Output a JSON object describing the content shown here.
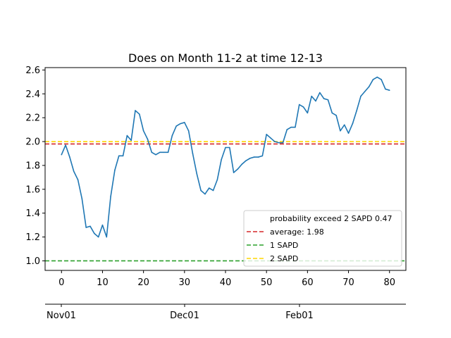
{
  "chart_data": {
    "type": "line",
    "title": "Does on Month 11-2 at time 12-13",
    "xlabel": "",
    "ylabel": "",
    "xlim": [
      -4,
      84
    ],
    "ylim": [
      0.92,
      2.62
    ],
    "x_ticks": [
      0,
      10,
      20,
      30,
      40,
      50,
      60,
      70,
      80
    ],
    "y_ticks": [
      1.0,
      1.2,
      1.4,
      1.6,
      1.8,
      2.0,
      2.2,
      2.4,
      2.6
    ],
    "y_tick_labels": [
      "1.0",
      "1.2",
      "1.4",
      "1.6",
      "1.8",
      "2.0",
      "2.2",
      "2.4",
      "2.6"
    ],
    "grid": false,
    "legend_position": "lower-right",
    "series": [
      {
        "name": "",
        "color": "#1f77b4",
        "x": [
          0,
          1,
          2,
          3,
          4,
          5,
          6,
          7,
          8,
          9,
          10,
          11,
          12,
          13,
          14,
          15,
          16,
          17,
          18,
          19,
          20,
          21,
          22,
          23,
          24,
          25,
          26,
          27,
          28,
          29,
          30,
          31,
          32,
          33,
          34,
          35,
          36,
          37,
          38,
          39,
          40,
          41,
          42,
          43,
          44,
          45,
          46,
          47,
          48,
          49,
          50,
          51,
          52,
          53,
          54,
          55,
          56,
          57,
          58,
          59,
          60,
          61,
          62,
          63,
          64,
          65,
          66,
          67,
          68,
          69,
          70,
          71,
          72,
          73,
          74,
          75,
          76,
          77,
          78,
          79,
          80
        ],
        "y": [
          1.89,
          1.97,
          1.87,
          1.75,
          1.68,
          1.52,
          1.28,
          1.29,
          1.23,
          1.2,
          1.3,
          1.2,
          1.54,
          1.76,
          1.88,
          1.88,
          2.05,
          2.01,
          2.26,
          2.23,
          2.09,
          2.02,
          1.91,
          1.89,
          1.91,
          1.91,
          1.91,
          2.05,
          2.13,
          2.15,
          2.16,
          2.09,
          1.9,
          1.73,
          1.59,
          1.56,
          1.61,
          1.59,
          1.68,
          1.85,
          1.95,
          1.95,
          1.74,
          1.77,
          1.81,
          1.84,
          1.86,
          1.87,
          1.87,
          1.88,
          2.06,
          2.03,
          2.0,
          1.99,
          1.99,
          2.1,
          2.12,
          2.12,
          2.31,
          2.29,
          2.24,
          2.38,
          2.34,
          2.41,
          2.36,
          2.35,
          2.24,
          2.22,
          2.09,
          2.14,
          2.07,
          2.15,
          2.26,
          2.38,
          2.42,
          2.46,
          2.52,
          2.54,
          2.52,
          2.44,
          2.43
        ]
      }
    ],
    "hlines": [
      {
        "y": 1.98,
        "color": "#d62728",
        "label": "average: 1.98"
      },
      {
        "y": 1.0,
        "color": "#2ca02c",
        "label": "1 SAPD"
      },
      {
        "y": 2.0,
        "color": "#ffd700",
        "label": "2 SAPD"
      }
    ],
    "legend": {
      "header": "probability exceed 2 SAPD 0.47",
      "entries": [
        "average: 1.98",
        "1 SAPD",
        "2 SAPD"
      ]
    },
    "secondary_axis": {
      "tick_labels": [
        "Nov01",
        "Dec01",
        "Feb01"
      ]
    }
  }
}
